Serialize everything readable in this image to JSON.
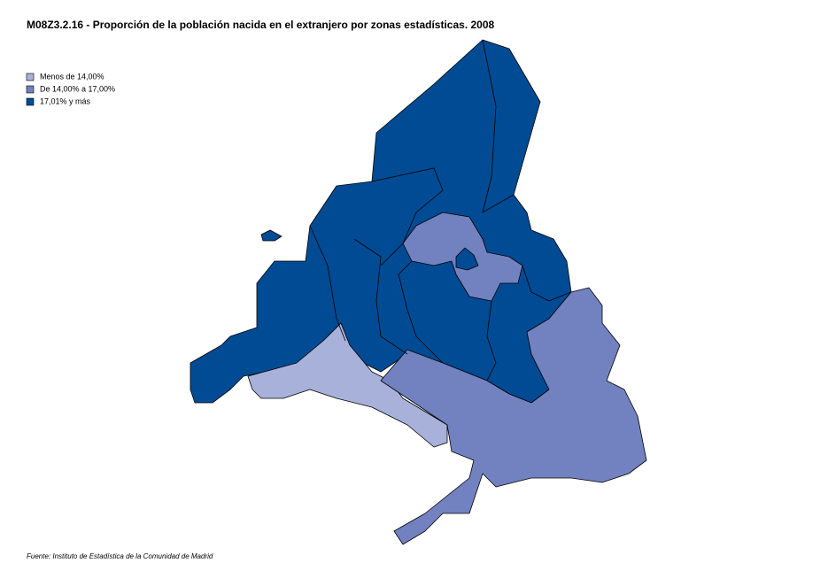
{
  "title": "M08Z3.2.16 - Proporción de la población nacida en el extranjero por zonas estadísticas. 2008",
  "legend": [
    {
      "label": "Menos de 14,00%",
      "color": "#a8b1d9"
    },
    {
      "label": "De 14,00% a 17,00%",
      "color": "#7282c0"
    },
    {
      "label": "17,01% y más",
      "color": "#004b93"
    }
  ],
  "source": "Fuente: Instituto de Estadística de la Comunidad de Madrid"
}
